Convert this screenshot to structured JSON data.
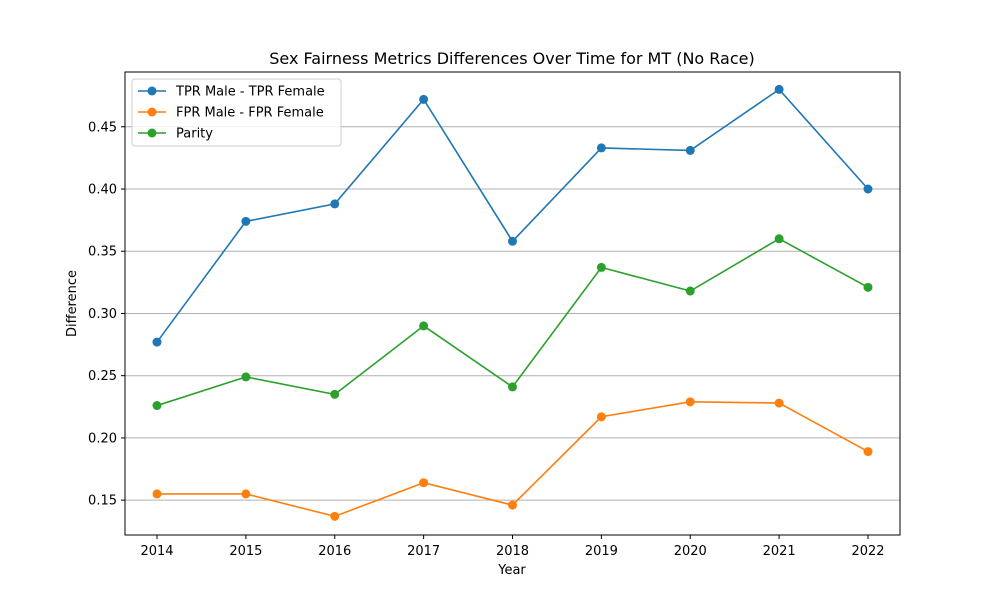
{
  "chart_data": {
    "type": "line",
    "title": "Sex Fairness Metrics Differences Over Time for MT (No Race)",
    "xlabel": "Year",
    "ylabel": "Difference",
    "x": [
      2014,
      2015,
      2016,
      2017,
      2018,
      2019,
      2020,
      2021,
      2022
    ],
    "x_ticks": [
      "2014",
      "2015",
      "2016",
      "2017",
      "2018",
      "2019",
      "2020",
      "2021",
      "2022"
    ],
    "ylim": [
      0.122,
      0.494
    ],
    "y_ticks": [
      "0.15",
      "0.20",
      "0.25",
      "0.30",
      "0.35",
      "0.40",
      "0.45"
    ],
    "grid": "horizontal",
    "legend_position": "top-left",
    "series": [
      {
        "name": "TPR Male - TPR Female",
        "color": "#1f77b4",
        "values": [
          0.277,
          0.374,
          0.388,
          0.472,
          0.358,
          0.433,
          0.431,
          0.48,
          0.4
        ]
      },
      {
        "name": "FPR Male - FPR Female",
        "color": "#ff7f0e",
        "values": [
          0.155,
          0.155,
          0.137,
          0.164,
          0.146,
          0.217,
          0.229,
          0.228,
          0.189
        ]
      },
      {
        "name": "Parity",
        "color": "#2ca02c",
        "values": [
          0.226,
          0.249,
          0.235,
          0.29,
          0.241,
          0.337,
          0.318,
          0.36,
          0.321
        ]
      }
    ]
  }
}
